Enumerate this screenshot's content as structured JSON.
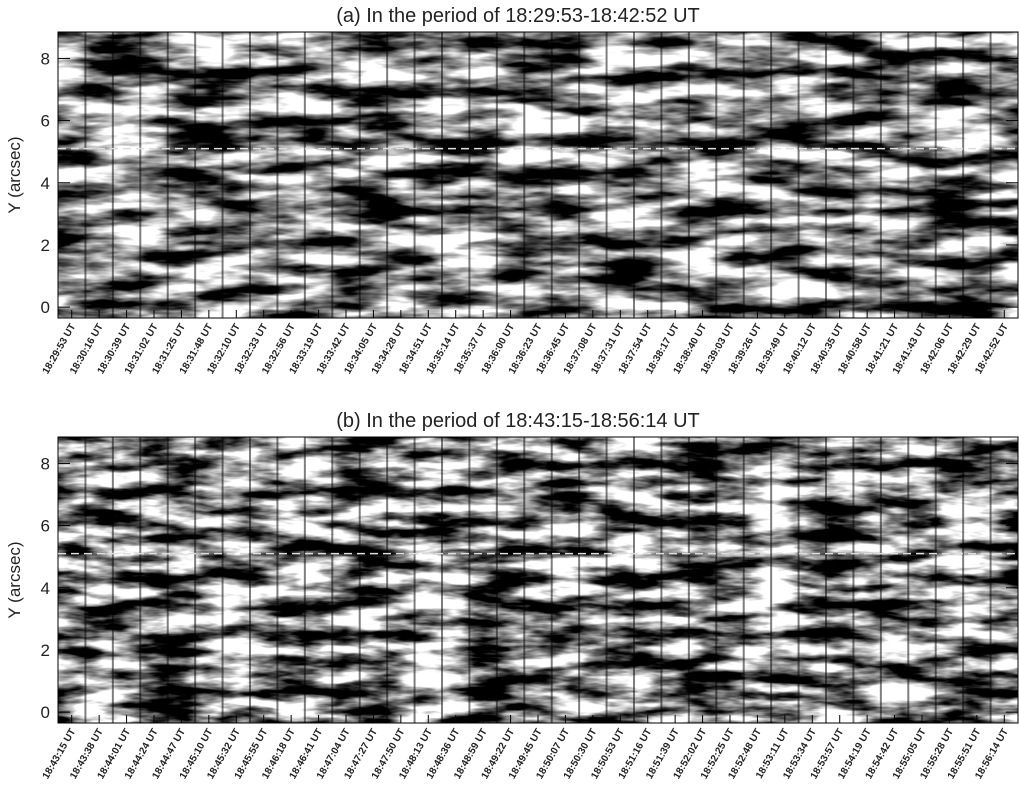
{
  "chart_data": [
    {
      "type": "image",
      "title": "(a) In the period of 18:29:53-18:42:52 UT",
      "ylabel": "Y (arcsec)",
      "ylim": [
        -0.35,
        8.85
      ],
      "yticks": [
        0,
        2,
        4,
        6,
        8
      ],
      "reference_line": 5.1,
      "categories": [
        "18:29:53 UT",
        "18:30:16 UT",
        "18:30:39 UT",
        "18:31:02 UT",
        "18:31:25 UT",
        "18:31:48 UT",
        "18:32:10 UT",
        "18:32:33 UT",
        "18:32:56 UT",
        "18:33:19 UT",
        "18:33:42 UT",
        "18:34:05 UT",
        "18:34:28 UT",
        "18:34:51 UT",
        "18:35:14 UT",
        "18:35:37 UT",
        "18:36:00 UT",
        "18:36:23 UT",
        "18:36:45 UT",
        "18:37:08 UT",
        "18:37:31 UT",
        "18:37:54 UT",
        "18:38:17 UT",
        "18:38:40 UT",
        "18:39:03 UT",
        "18:39:26 UT",
        "18:39:49 UT",
        "18:40:12 UT",
        "18:40:35 UT",
        "18:40:58 UT",
        "18:41:21 UT",
        "18:41:43 UT",
        "18:42:06 UT",
        "18:42:29 UT",
        "18:42:52 UT"
      ]
    },
    {
      "type": "image",
      "title": "(b) In the period of 18:43:15-18:56:14 UT",
      "ylabel": "Y (arcsec)",
      "ylim": [
        -0.35,
        8.85
      ],
      "yticks": [
        0,
        2,
        4,
        6,
        8
      ],
      "reference_line": 5.1,
      "categories": [
        "18:43:15 UT",
        "18:43:38 UT",
        "18:44:01 UT",
        "18:44:24 UT",
        "18:44:47 UT",
        "18:45:10 UT",
        "18:45:32 UT",
        "18:45:55 UT",
        "18:46:18 UT",
        "18:46:41 UT",
        "18:47:04 UT",
        "18:47:27 UT",
        "18:47:50 UT",
        "18:48:13 UT",
        "18:48:36 UT",
        "18:48:59 UT",
        "18:49:22 UT",
        "18:49:45 UT",
        "18:50:07 UT",
        "18:50:30 UT",
        "18:50:53 UT",
        "18:51:16 UT",
        "18:51:39 UT",
        "18:52:02 UT",
        "18:52:25 UT",
        "18:52:48 UT",
        "18:53:11 UT",
        "18:53:34 UT",
        "18:53:57 UT",
        "18:54:19 UT",
        "18:54:42 UT",
        "18:55:05 UT",
        "18:55:28 UT",
        "18:55:51 UT",
        "18:56:14 UT"
      ]
    }
  ]
}
